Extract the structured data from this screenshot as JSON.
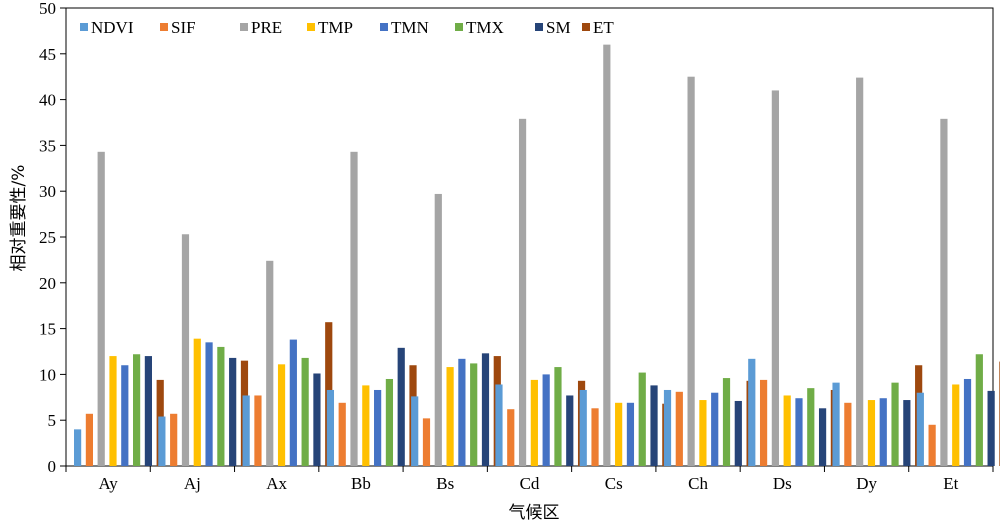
{
  "chart_data": {
    "type": "bar",
    "title": "",
    "xlabel": "气候区",
    "ylabel": "相对重要性/%",
    "ylim": [
      0,
      50
    ],
    "yticks": [
      0,
      5,
      10,
      15,
      20,
      25,
      30,
      35,
      40,
      45,
      50
    ],
    "grid": false,
    "legend_position": "top",
    "categories": [
      "Ay",
      "Aj",
      "Ax",
      "Bb",
      "Bs",
      "Cd",
      "Cs",
      "Ch",
      "Ds",
      "Dy",
      "Et"
    ],
    "series": [
      {
        "name": "NDVI",
        "color": "#5B9BD5",
        "values": [
          4.0,
          5.4,
          7.7,
          8.3,
          7.6,
          8.9,
          8.3,
          8.3,
          11.7,
          9.1,
          8.0
        ]
      },
      {
        "name": "SIF",
        "color": "#ED7D31",
        "values": [
          5.7,
          5.7,
          7.7,
          6.9,
          5.2,
          6.2,
          6.3,
          8.1,
          9.4,
          6.9,
          4.5
        ]
      },
      {
        "name": "PRE",
        "color": "#A5A5A5",
        "values": [
          34.3,
          25.3,
          22.4,
          34.3,
          29.7,
          37.9,
          46.0,
          42.5,
          41.0,
          42.4,
          37.9
        ]
      },
      {
        "name": "TMP",
        "color": "#FFC000",
        "values": [
          12.0,
          13.9,
          11.1,
          8.8,
          10.8,
          9.4,
          6.9,
          7.2,
          7.7,
          7.2,
          8.9
        ]
      },
      {
        "name": "TMN",
        "color": "#4472C4",
        "values": [
          11.0,
          13.5,
          13.8,
          8.3,
          11.7,
          10.0,
          6.9,
          8.0,
          7.4,
          7.4,
          9.5
        ]
      },
      {
        "name": "TMX",
        "color": "#70AD47",
        "values": [
          12.2,
          13.0,
          11.8,
          9.5,
          11.2,
          10.8,
          10.2,
          9.6,
          8.5,
          9.1,
          12.2
        ]
      },
      {
        "name": "SM",
        "color": "#264478",
        "values": [
          12.0,
          11.8,
          10.1,
          12.9,
          12.3,
          7.7,
          8.8,
          7.1,
          6.3,
          7.2,
          8.2
        ]
      },
      {
        "name": "ET",
        "color": "#9E480E",
        "values": [
          9.4,
          11.5,
          15.7,
          11.0,
          12.0,
          9.3,
          6.8,
          9.3,
          8.3,
          11.0,
          11.4
        ]
      }
    ]
  }
}
